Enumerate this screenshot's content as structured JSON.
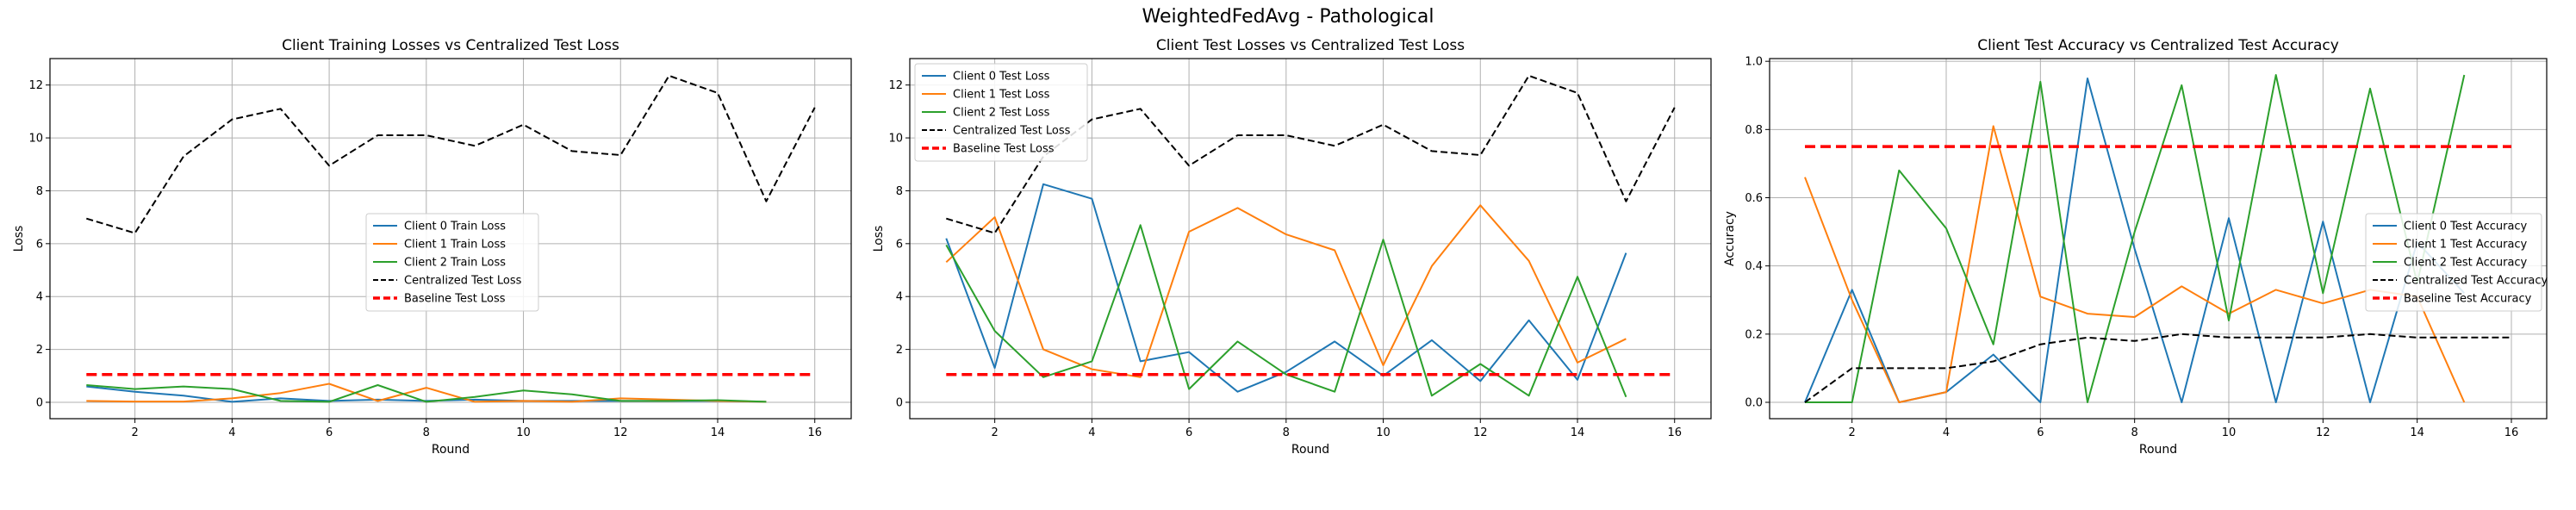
{
  "suptitle": "WeightedFedAvg - Pathological",
  "colors": {
    "client0": "#1f77b4",
    "client1": "#ff7f0e",
    "client2": "#2ca02c",
    "centralized": "#000000",
    "baseline": "#ff0000",
    "grid": "#b0b0b0"
  },
  "chart_data": [
    {
      "type": "line",
      "title": "Client Training Losses vs Centralized Test Loss",
      "xlabel": "Round",
      "ylabel": "Loss",
      "xlim": [
        0.25,
        16.75
      ],
      "ylim": [
        -0.62,
        13.0
      ],
      "xticks": [
        2,
        4,
        6,
        8,
        10,
        12,
        14,
        16
      ],
      "yticks": [
        0,
        2,
        4,
        6,
        8,
        10,
        12
      ],
      "grid": true,
      "legend": "center",
      "series": [
        {
          "name": "Client 0 Train Loss",
          "color": "#1f77b4",
          "style": "solid",
          "x": [
            1,
            2,
            3,
            4,
            5,
            6,
            7,
            8,
            9,
            10,
            11,
            12,
            13,
            14,
            15
          ],
          "values": [
            0.6,
            0.4,
            0.25,
            0.02,
            0.15,
            0.05,
            0.1,
            0.05,
            0.1,
            0.05,
            0.05,
            0.05,
            0.05,
            0.05,
            0.02
          ]
        },
        {
          "name": "Client 1 Train Loss",
          "color": "#ff7f0e",
          "style": "solid",
          "x": [
            1,
            2,
            3,
            4,
            5,
            6,
            7,
            8,
            9,
            10,
            11,
            12,
            13,
            14,
            15
          ],
          "values": [
            0.05,
            0.03,
            0.03,
            0.15,
            0.35,
            0.7,
            0.05,
            0.55,
            0.02,
            0.05,
            0.02,
            0.15,
            0.1,
            0.05,
            0.02
          ]
        },
        {
          "name": "Client 2 Train Loss",
          "color": "#2ca02c",
          "style": "solid",
          "x": [
            1,
            2,
            3,
            4,
            5,
            6,
            7,
            8,
            9,
            10,
            11,
            12,
            13,
            14,
            15
          ],
          "values": [
            0.65,
            0.5,
            0.6,
            0.5,
            0.05,
            0.02,
            0.65,
            0.02,
            0.2,
            0.45,
            0.3,
            0.05,
            0.05,
            0.08,
            0.02
          ]
        },
        {
          "name": "Centralized Test Loss",
          "color": "#000000",
          "style": "dashed",
          "x": [
            1,
            2,
            3,
            4,
            5,
            6,
            7,
            8,
            9,
            10,
            11,
            12,
            13,
            14,
            15,
            16
          ],
          "values": [
            6.95,
            6.4,
            9.3,
            10.7,
            11.1,
            8.95,
            10.1,
            10.1,
            9.7,
            10.5,
            9.5,
            9.35,
            12.35,
            11.7,
            7.6,
            11.15
          ]
        },
        {
          "name": "Baseline Test Loss",
          "color": "#ff0000",
          "style": "dashed-thick",
          "x": [
            1,
            16
          ],
          "values": [
            1.05,
            1.05
          ]
        }
      ]
    },
    {
      "type": "line",
      "title": "Client Test Losses vs Centralized Test Loss",
      "xlabel": "Round",
      "ylabel": "Loss",
      "xlim": [
        0.25,
        16.75
      ],
      "ylim": [
        -0.62,
        13.0
      ],
      "xticks": [
        2,
        4,
        6,
        8,
        10,
        12,
        14,
        16
      ],
      "yticks": [
        0,
        2,
        4,
        6,
        8,
        10,
        12
      ],
      "grid": true,
      "legend": "upper left",
      "series": [
        {
          "name": "Client 0 Test Loss",
          "color": "#1f77b4",
          "style": "solid",
          "x": [
            1,
            2,
            3,
            4,
            5,
            6,
            7,
            8,
            9,
            10,
            11,
            12,
            13,
            14,
            15
          ],
          "values": [
            6.2,
            1.3,
            8.25,
            7.7,
            1.55,
            1.9,
            0.4,
            1.15,
            2.3,
            1.0,
            2.35,
            0.8,
            3.1,
            0.85,
            5.65
          ]
        },
        {
          "name": "Client 1 Test Loss",
          "color": "#ff7f0e",
          "style": "solid",
          "x": [
            1,
            2,
            3,
            4,
            5,
            6,
            7,
            8,
            9,
            10,
            11,
            12,
            13,
            14,
            15
          ],
          "values": [
            5.3,
            7.0,
            2.0,
            1.25,
            0.95,
            6.45,
            7.35,
            6.35,
            5.75,
            1.4,
            5.15,
            7.45,
            5.35,
            1.5,
            2.4
          ]
        },
        {
          "name": "Client 2 Test Loss",
          "color": "#2ca02c",
          "style": "solid",
          "x": [
            1,
            2,
            3,
            4,
            5,
            6,
            7,
            8,
            9,
            10,
            11,
            12,
            13,
            14,
            15
          ],
          "values": [
            5.95,
            2.7,
            0.95,
            1.55,
            6.7,
            0.5,
            2.3,
            1.05,
            0.4,
            6.15,
            0.25,
            1.45,
            0.25,
            4.75,
            0.2
          ]
        },
        {
          "name": "Centralized Test Loss",
          "color": "#000000",
          "style": "dashed",
          "x": [
            1,
            2,
            3,
            4,
            5,
            6,
            7,
            8,
            9,
            10,
            11,
            12,
            13,
            14,
            15,
            16
          ],
          "values": [
            6.95,
            6.4,
            9.3,
            10.7,
            11.1,
            8.95,
            10.1,
            10.1,
            9.7,
            10.5,
            9.5,
            9.35,
            12.35,
            11.7,
            7.6,
            11.15
          ]
        },
        {
          "name": "Baseline Test Loss",
          "color": "#ff0000",
          "style": "dashed-thick",
          "x": [
            1,
            16
          ],
          "values": [
            1.05,
            1.05
          ]
        }
      ]
    },
    {
      "type": "line",
      "title": "Client Test Accuracy vs Centralized Test Accuracy",
      "xlabel": "Round",
      "ylabel": "Accuracy",
      "xlim": [
        0.25,
        16.75
      ],
      "ylim": [
        -0.048,
        1.008
      ],
      "xticks": [
        2,
        4,
        6,
        8,
        10,
        12,
        14,
        16
      ],
      "yticks": [
        0.0,
        0.2,
        0.4,
        0.6,
        0.8,
        1.0
      ],
      "ytick_labels": [
        "0.0",
        "0.2",
        "0.4",
        "0.6",
        "0.8",
        "1.0"
      ],
      "grid": true,
      "legend": "center right",
      "series": [
        {
          "name": "Client 0 Test Accuracy",
          "color": "#1f77b4",
          "style": "solid",
          "x": [
            1,
            2,
            3,
            4,
            5,
            6,
            7,
            8,
            9,
            10,
            11,
            12,
            13,
            14,
            15
          ],
          "values": [
            0.0,
            0.33,
            0.0,
            0.03,
            0.14,
            0.0,
            0.95,
            0.45,
            0.0,
            0.54,
            0.0,
            0.53,
            0.0,
            0.47,
            0.32
          ]
        },
        {
          "name": "Client 1 Test Accuracy",
          "color": "#ff7f0e",
          "style": "solid",
          "x": [
            1,
            2,
            3,
            4,
            5,
            6,
            7,
            8,
            9,
            10,
            11,
            12,
            13,
            14,
            15
          ],
          "values": [
            0.66,
            0.3,
            0.0,
            0.03,
            0.81,
            0.31,
            0.26,
            0.25,
            0.34,
            0.26,
            0.33,
            0.29,
            0.33,
            0.31,
            0.0
          ]
        },
        {
          "name": "Client 2 Test Accuracy",
          "color": "#2ca02c",
          "style": "solid",
          "x": [
            1,
            2,
            3,
            4,
            5,
            6,
            7,
            8,
            9,
            10,
            11,
            12,
            13,
            14,
            15
          ],
          "values": [
            0.0,
            0.0,
            0.68,
            0.51,
            0.17,
            0.94,
            0.0,
            0.5,
            0.93,
            0.24,
            0.96,
            0.32,
            0.92,
            0.35,
            0.96
          ]
        },
        {
          "name": "Centralized Test Accuracy",
          "color": "#000000",
          "style": "dashed",
          "x": [
            1,
            2,
            3,
            4,
            5,
            6,
            7,
            8,
            9,
            10,
            11,
            12,
            13,
            14,
            15,
            16
          ],
          "values": [
            0.0,
            0.1,
            0.1,
            0.1,
            0.12,
            0.17,
            0.19,
            0.18,
            0.2,
            0.19,
            0.19,
            0.19,
            0.2,
            0.19,
            0.19,
            0.19
          ]
        },
        {
          "name": "Baseline Test Accuracy",
          "color": "#ff0000",
          "style": "dashed-thick",
          "x": [
            1,
            16
          ],
          "values": [
            0.75,
            0.75
          ]
        }
      ]
    }
  ]
}
